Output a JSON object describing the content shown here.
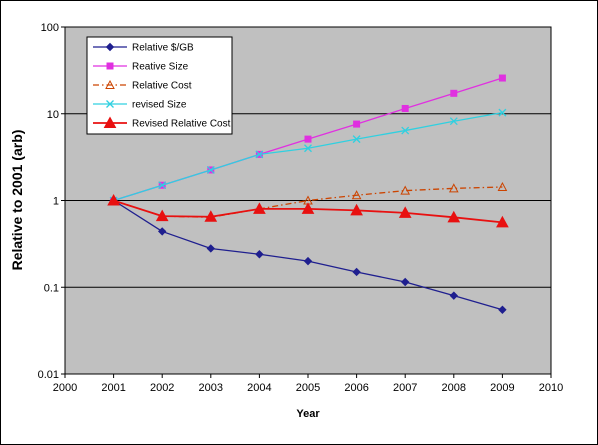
{
  "chart_data": {
    "type": "line",
    "xlabel": "Year",
    "ylabel": "Relative to 2001 (arb)",
    "y_scale": "log",
    "xlim": [
      2000,
      2010
    ],
    "ylim": [
      0.01,
      100
    ],
    "x_ticks": [
      "2000",
      "2001",
      "2002",
      "2003",
      "2004",
      "2005",
      "2006",
      "2007",
      "2008",
      "2009",
      "2010"
    ],
    "y_ticks": [
      "0.01",
      "0.1",
      "1",
      "10",
      "100"
    ],
    "grid": "horizontal major",
    "plot_background": "#c0c0c0",
    "legend_position": "top-left",
    "x": [
      2001,
      2002,
      2003,
      2004,
      2005,
      2006,
      2007,
      2008,
      2009
    ],
    "series": [
      {
        "name": "Relative $/GB",
        "color": "#1f1f8f",
        "marker": "diamond",
        "line": "solid",
        "values": [
          1,
          0.44,
          0.28,
          0.24,
          0.2,
          0.15,
          0.115,
          0.08,
          0.055
        ]
      },
      {
        "name": "Reative Size",
        "color": "#e030e0",
        "marker": "square",
        "line": "solid",
        "values": [
          1,
          1.5,
          2.25,
          3.4,
          5.1,
          7.6,
          11.5,
          17.2,
          25.8
        ]
      },
      {
        "name": "Relative Cost",
        "color": "#cc4400",
        "marker": "open-triangle",
        "line": "dash-dot",
        "values": [
          1,
          0.66,
          0.64,
          0.8,
          1.0,
          1.15,
          1.3,
          1.38,
          1.43
        ]
      },
      {
        "name": "revised Size",
        "color": "#30d0e0",
        "marker": "x",
        "line": "solid",
        "values": [
          1,
          1.5,
          2.25,
          3.4,
          4.0,
          5.1,
          6.4,
          8.2,
          10.3
        ]
      },
      {
        "name": "Revised Relative Cost",
        "color": "#e81010",
        "marker": "filled-triangle",
        "line": "solid",
        "values": [
          1,
          0.66,
          0.65,
          0.8,
          0.8,
          0.77,
          0.72,
          0.64,
          0.56
        ]
      }
    ]
  }
}
